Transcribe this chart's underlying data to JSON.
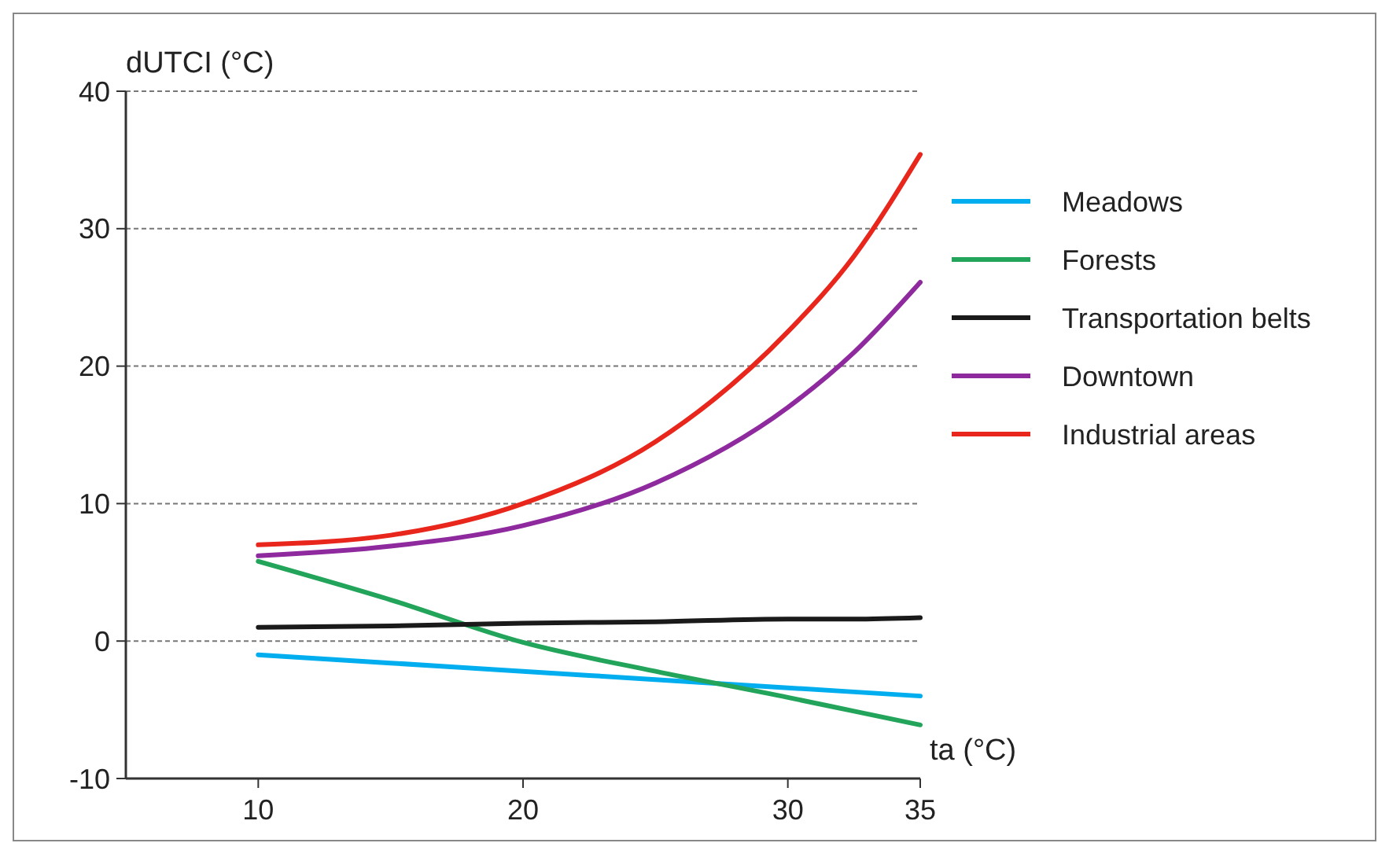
{
  "chart_data": {
    "type": "line",
    "xlabel": "ta (°C)",
    "ylabel": "dUTCI (°C)",
    "x": [
      10,
      15,
      20,
      25,
      30,
      32.5,
      35
    ],
    "xlim": [
      5,
      35
    ],
    "xticks": [
      10,
      20,
      30,
      35
    ],
    "ylim": [
      -10,
      40
    ],
    "yticks": [
      -10,
      0,
      10,
      20,
      30,
      40
    ],
    "grid": "y",
    "legend": "right",
    "marker": "none",
    "line_style": "solid",
    "series": [
      {
        "name": "Meadows",
        "color": "#00aeef",
        "values": [
          -1.0,
          -1.6,
          -2.2,
          -2.8,
          -3.4,
          -3.7,
          -4.0
        ]
      },
      {
        "name": "Forests",
        "color": "#22a45a",
        "values": [
          5.8,
          3.0,
          -0.1,
          -2.2,
          -4.1,
          -5.1,
          -6.1
        ]
      },
      {
        "name": "Transportation belts",
        "color": "#1a1a1a",
        "values": [
          1.0,
          1.1,
          1.3,
          1.4,
          1.6,
          1.6,
          1.7
        ]
      },
      {
        "name": "Downtown",
        "color": "#8e2a9e",
        "values": [
          6.2,
          6.9,
          8.4,
          11.5,
          17.0,
          21.0,
          26.1
        ]
      },
      {
        "name": "Industrial areas",
        "color": "#e8261c",
        "values": [
          7.0,
          7.7,
          10.0,
          14.5,
          22.5,
          28.0,
          35.4
        ]
      }
    ]
  }
}
